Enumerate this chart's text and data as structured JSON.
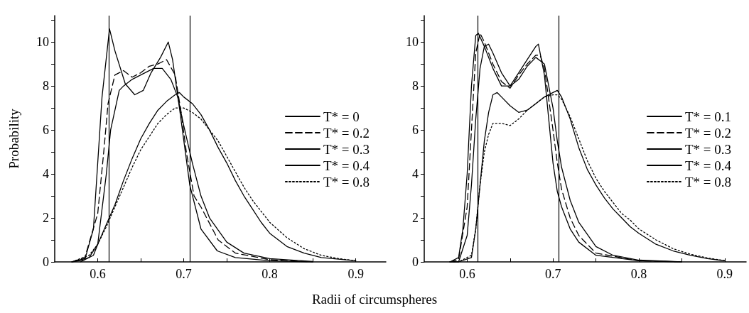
{
  "chart_data": [
    {
      "type": "line",
      "ylabel": "Probability",
      "xlabel": "Radii of circumspheres",
      "xlim": [
        0.55,
        0.935
      ],
      "ylim": [
        0,
        11.2
      ],
      "xticks": [
        {
          "value": 0.6,
          "label": "0.6"
        },
        {
          "value": 0.65,
          "label": null
        },
        {
          "value": 0.7,
          "label": "0.7"
        },
        {
          "value": 0.75,
          "label": null
        },
        {
          "value": 0.8,
          "label": "0.8"
        },
        {
          "value": 0.85,
          "label": null
        },
        {
          "value": 0.9,
          "label": "0.9"
        }
      ],
      "yticks": [
        0,
        {
          "value": 1,
          "label": null
        },
        2,
        {
          "value": 3,
          "label": null
        },
        4,
        {
          "value": 5,
          "label": null
        },
        6,
        {
          "value": 7,
          "label": null
        },
        8,
        {
          "value": 9,
          "label": null
        },
        10,
        {
          "value": 11,
          "label": null
        }
      ],
      "grid": false,
      "legend": "right",
      "marker": "none",
      "ref_lines": [
        {
          "axis": "x",
          "value": 0.613,
          "color": "#000000"
        },
        {
          "axis": "x",
          "value": 0.707,
          "color": "#000000"
        }
      ],
      "series": [
        {
          "name": "T* = 0",
          "color": "#000000",
          "line_style": "solid",
          "x": [
            0.57,
            0.585,
            0.595,
            0.605,
            0.6137,
            0.62,
            0.632,
            0.643,
            0.653,
            0.662,
            0.673,
            0.682,
            0.687,
            0.695,
            0.707,
            0.72,
            0.739,
            0.76,
            0.8,
            0.85
          ],
          "values": [
            0,
            0.1,
            1.5,
            7.5,
            10.6,
            9.6,
            8.1,
            7.6,
            7.8,
            8.6,
            9.3,
            10.0,
            9.2,
            7.0,
            3.5,
            1.5,
            0.5,
            0.2,
            0.05,
            0
          ]
        },
        {
          "name": "T* = 0.2",
          "color": "#000000",
          "line_style": "dashed",
          "x": [
            0.57,
            0.585,
            0.6,
            0.607,
            0.612,
            0.62,
            0.63,
            0.64,
            0.65,
            0.66,
            0.67,
            0.68,
            0.69,
            0.697,
            0.703,
            0.712,
            0.72,
            0.74,
            0.76,
            0.8,
            0.85
          ],
          "values": [
            0,
            0.2,
            2.2,
            5.0,
            7.2,
            8.5,
            8.7,
            8.4,
            8.6,
            8.9,
            9.0,
            9.2,
            8.5,
            6.8,
            5.0,
            3.0,
            2.5,
            1.0,
            0.4,
            0.1,
            0
          ]
        },
        {
          "name": "T* = 0.3",
          "color": "#000000",
          "line_style": "solid",
          "x": [
            0.57,
            0.59,
            0.6,
            0.61,
            0.615,
            0.625,
            0.63,
            0.64,
            0.65,
            0.665,
            0.675,
            0.685,
            0.693,
            0.7,
            0.71,
            0.72,
            0.73,
            0.75,
            0.77,
            0.8,
            0.85
          ],
          "values": [
            0,
            0.2,
            0.8,
            4.0,
            6.0,
            7.8,
            8.0,
            8.3,
            8.5,
            8.8,
            8.8,
            8.3,
            7.5,
            6.2,
            4.5,
            3.0,
            2.0,
            0.9,
            0.4,
            0.15,
            0.02
          ]
        },
        {
          "name": "T* = 0.4",
          "color": "#000000",
          "line_style": "solid",
          "x": [
            0.58,
            0.595,
            0.6,
            0.61,
            0.62,
            0.63,
            0.64,
            0.65,
            0.66,
            0.67,
            0.68,
            0.69,
            0.695,
            0.7,
            0.71,
            0.72,
            0.73,
            0.74,
            0.75,
            0.76,
            0.77,
            0.78,
            0.79,
            0.8,
            0.82,
            0.84,
            0.86,
            0.9
          ],
          "values": [
            0,
            0.3,
            0.8,
            1.7,
            2.6,
            3.7,
            4.7,
            5.6,
            6.3,
            6.9,
            7.3,
            7.6,
            7.7,
            7.5,
            7.2,
            6.7,
            6.0,
            5.2,
            4.5,
            3.7,
            3.0,
            2.4,
            1.8,
            1.3,
            0.7,
            0.4,
            0.2,
            0.05
          ]
        },
        {
          "name": "T* = 0.8",
          "color": "#000000",
          "line_style": "dotted",
          "x": [
            0.57,
            0.59,
            0.6,
            0.61,
            0.62,
            0.63,
            0.64,
            0.65,
            0.66,
            0.67,
            0.68,
            0.69,
            0.7,
            0.71,
            0.72,
            0.73,
            0.74,
            0.75,
            0.76,
            0.77,
            0.78,
            0.79,
            0.8,
            0.82,
            0.84,
            0.86,
            0.88,
            0.9
          ],
          "values": [
            0,
            0.3,
            0.8,
            1.6,
            2.5,
            3.4,
            4.3,
            5.1,
            5.7,
            6.3,
            6.7,
            7.0,
            7.0,
            6.8,
            6.5,
            6.0,
            5.5,
            4.8,
            4.1,
            3.4,
            2.8,
            2.3,
            1.8,
            1.1,
            0.6,
            0.3,
            0.15,
            0.05
          ]
        }
      ]
    },
    {
      "type": "line",
      "xlim": [
        0.55,
        0.925
      ],
      "ylim": [
        0,
        11.2
      ],
      "xticks": [
        {
          "value": 0.6,
          "label": "0.6"
        },
        {
          "value": 0.65,
          "label": null
        },
        {
          "value": 0.7,
          "label": "0.7"
        },
        {
          "value": 0.75,
          "label": null
        },
        {
          "value": 0.8,
          "label": "0.8"
        },
        {
          "value": 0.85,
          "label": null
        },
        {
          "value": 0.9,
          "label": "0.9"
        }
      ],
      "yticks": [
        0,
        {
          "value": 1,
          "label": null
        },
        2,
        {
          "value": 3,
          "label": null
        },
        4,
        {
          "value": 5,
          "label": null
        },
        6,
        {
          "value": 7,
          "label": null
        },
        8,
        {
          "value": 9,
          "label": null
        },
        10,
        {
          "value": 11,
          "label": null
        }
      ],
      "grid": false,
      "legend": "right",
      "marker": "none",
      "ref_lines": [
        {
          "axis": "x",
          "value": 0.612,
          "color": "#000000"
        },
        {
          "axis": "x",
          "value": 0.707,
          "color": "#000000"
        }
      ],
      "series": [
        {
          "name": "T* = 0.1",
          "color": "#000000",
          "line_style": "solid",
          "x": [
            0.58,
            0.59,
            0.595,
            0.6,
            0.605,
            0.61,
            0.613,
            0.62,
            0.63,
            0.64,
            0.65,
            0.66,
            0.67,
            0.68,
            0.683,
            0.69,
            0.695,
            0.7,
            0.705,
            0.71,
            0.72,
            0.73,
            0.75,
            0.8,
            0.85
          ],
          "values": [
            0,
            0.2,
            1.5,
            4.0,
            8.0,
            10.3,
            10.4,
            9.8,
            8.8,
            8.0,
            8.0,
            8.6,
            9.2,
            9.8,
            9.9,
            8.5,
            6.5,
            4.5,
            3.2,
            2.5,
            1.5,
            0.9,
            0.3,
            0.05,
            0
          ]
        },
        {
          "name": "T* = 0.2",
          "color": "#000000",
          "line_style": "dashed",
          "x": [
            0.58,
            0.59,
            0.6,
            0.605,
            0.61,
            0.615,
            0.62,
            0.63,
            0.64,
            0.65,
            0.66,
            0.67,
            0.68,
            0.685,
            0.69,
            0.7,
            0.705,
            0.71,
            0.72,
            0.73,
            0.75,
            0.8,
            0.85
          ],
          "values": [
            0,
            0.1,
            2.5,
            6.0,
            9.5,
            10.4,
            10.0,
            9.0,
            8.2,
            7.9,
            8.5,
            9.0,
            9.4,
            9.4,
            8.8,
            6.0,
            4.5,
            3.3,
            2.0,
            1.2,
            0.4,
            0.05,
            0
          ]
        },
        {
          "name": "T* = 0.3",
          "color": "#000000",
          "line_style": "solid",
          "x": [
            0.58,
            0.59,
            0.6,
            0.605,
            0.61,
            0.615,
            0.62,
            0.625,
            0.63,
            0.64,
            0.65,
            0.66,
            0.67,
            0.68,
            0.69,
            0.7,
            0.705,
            0.71,
            0.72,
            0.73,
            0.75,
            0.77,
            0.8,
            0.85
          ],
          "values": [
            0,
            0,
            1.2,
            3.5,
            6.5,
            8.8,
            9.8,
            9.9,
            9.5,
            8.6,
            8.0,
            8.3,
            8.9,
            9.3,
            9.0,
            7.0,
            5.5,
            4.3,
            2.8,
            1.8,
            0.7,
            0.3,
            0.08,
            0
          ]
        },
        {
          "name": "T* = 0.4",
          "color": "#000000",
          "line_style": "solid",
          "x": [
            0.58,
            0.59,
            0.605,
            0.61,
            0.615,
            0.62,
            0.625,
            0.63,
            0.635,
            0.64,
            0.65,
            0.66,
            0.67,
            0.68,
            0.69,
            0.7,
            0.705,
            0.71,
            0.72,
            0.73,
            0.74,
            0.75,
            0.76,
            0.77,
            0.78,
            0.79,
            0.8,
            0.82,
            0.84,
            0.86,
            0.88,
            0.9
          ],
          "values": [
            0,
            0,
            0.2,
            1.5,
            3.5,
            5.5,
            6.8,
            7.6,
            7.7,
            7.5,
            7.1,
            6.8,
            6.9,
            7.2,
            7.5,
            7.7,
            7.8,
            7.5,
            6.5,
            5.2,
            4.2,
            3.5,
            2.9,
            2.4,
            2.0,
            1.6,
            1.3,
            0.8,
            0.5,
            0.3,
            0.15,
            0.05
          ]
        },
        {
          "name": "T* = 0.8",
          "color": "#000000",
          "line_style": "dotted",
          "x": [
            0.58,
            0.59,
            0.605,
            0.61,
            0.615,
            0.62,
            0.625,
            0.63,
            0.64,
            0.65,
            0.66,
            0.67,
            0.68,
            0.69,
            0.7,
            0.705,
            0.71,
            0.72,
            0.73,
            0.74,
            0.75,
            0.76,
            0.77,
            0.78,
            0.79,
            0.8,
            0.82,
            0.84,
            0.86,
            0.88,
            0.9
          ],
          "values": [
            0,
            0,
            0.3,
            1.5,
            3.5,
            5.0,
            5.8,
            6.3,
            6.3,
            6.2,
            6.5,
            6.9,
            7.2,
            7.5,
            7.6,
            7.6,
            7.4,
            6.6,
            5.6,
            4.6,
            3.8,
            3.2,
            2.7,
            2.2,
            1.9,
            1.5,
            1.0,
            0.6,
            0.35,
            0.18,
            0.06
          ]
        }
      ]
    }
  ]
}
